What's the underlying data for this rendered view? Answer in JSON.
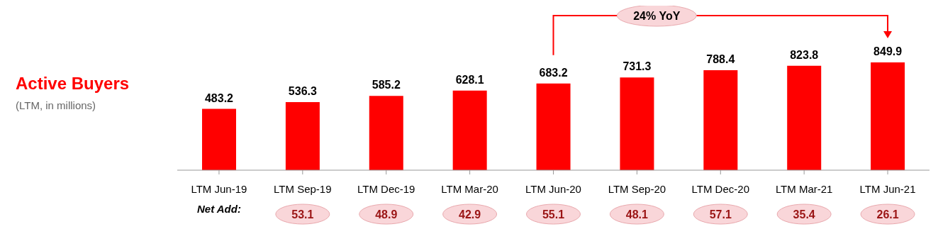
{
  "chart_data": {
    "type": "bar",
    "title": "Active Buyers",
    "subtitle": "(LTM, in millions)",
    "categories": [
      "LTM Jun-19",
      "LTM Sep-19",
      "LTM Dec-19",
      "LTM Mar-20",
      "LTM Jun-20",
      "LTM Sep-20",
      "LTM Dec-20",
      "LTM Mar-21",
      "LTM Jun-21"
    ],
    "values": [
      483.2,
      536.3,
      585.2,
      628.1,
      683.2,
      731.3,
      788.4,
      823.8,
      849.9
    ],
    "color": "#ff0000",
    "data_labels": true,
    "grid": false,
    "legend": false,
    "annotations": [
      "24% YoY",
      "Net Add:",
      "53.1",
      "48.9",
      "42.9",
      "55.1",
      "48.1",
      "57.1",
      "35.4",
      "26.1"
    ]
  }
}
